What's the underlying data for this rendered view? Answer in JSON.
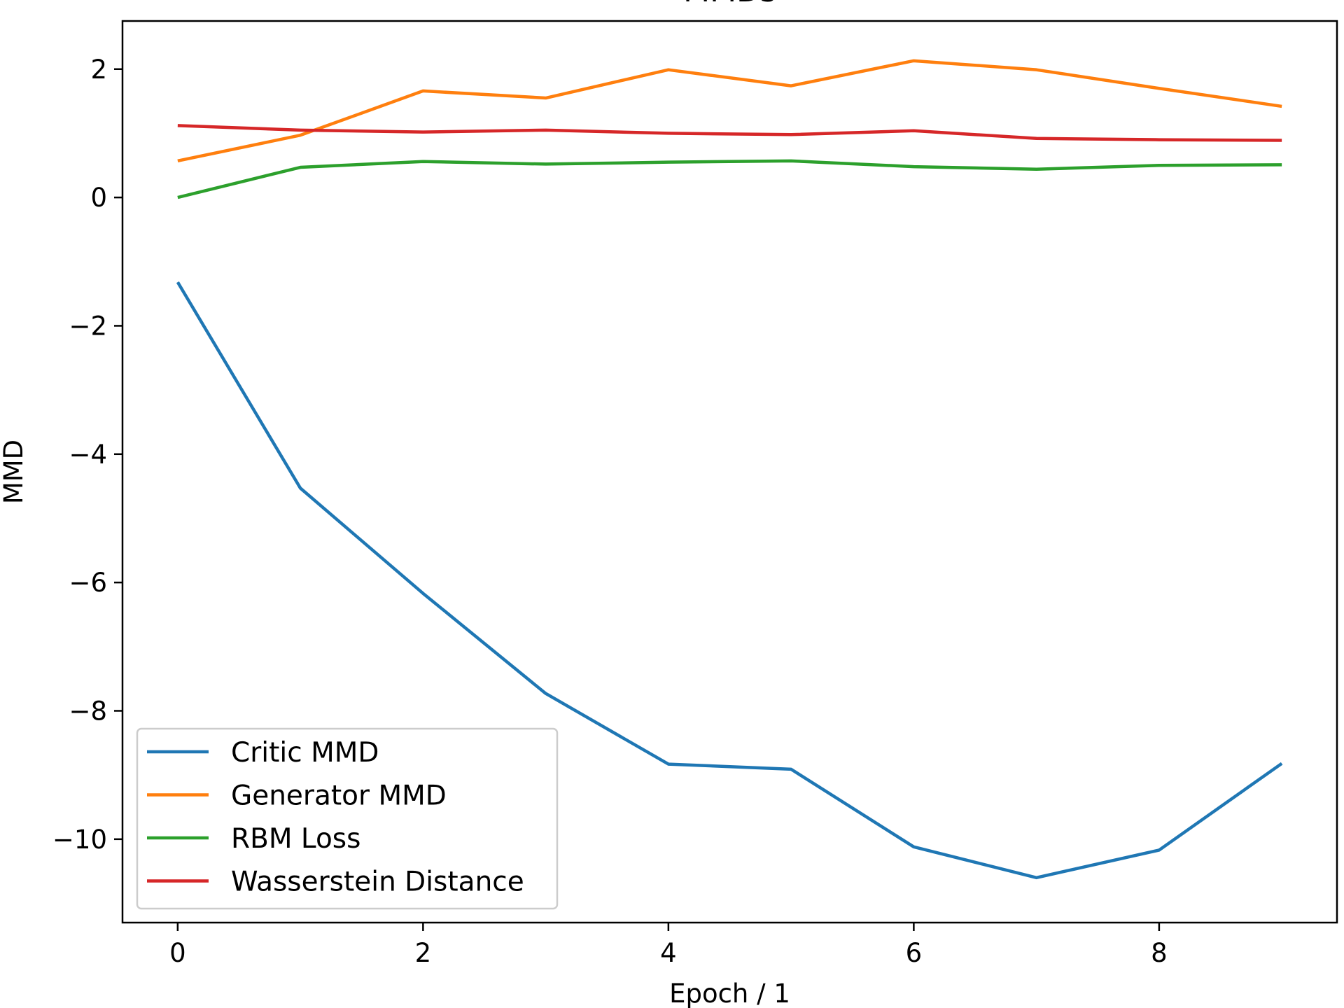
{
  "chart_data": {
    "type": "line",
    "title": "MMDs",
    "xlabel": "Epoch / 1",
    "ylabel": "MMD",
    "xlim": [
      -0.45,
      9.45
    ],
    "ylim": [
      -11.3,
      2.75
    ],
    "x_ticks": [
      0,
      2,
      4,
      6,
      8
    ],
    "y_ticks": [
      2,
      0,
      -2,
      -4,
      -6,
      -8,
      -10
    ],
    "x_tick_labels": [
      "0",
      "2",
      "4",
      "6",
      "8"
    ],
    "y_tick_labels": [
      "2",
      "0",
      "−2",
      "−4",
      "−6",
      "−8",
      "−10"
    ],
    "grid": false,
    "legend_position": "lower-left",
    "x": [
      0,
      1,
      2,
      3,
      4,
      5,
      6,
      7,
      8,
      9
    ],
    "series": [
      {
        "name": "Critic MMD",
        "color": "#1f77b4",
        "values": [
          -1.32,
          -4.53,
          -6.17,
          -7.73,
          -8.83,
          -8.91,
          -10.12,
          -10.6,
          -10.17,
          -8.82
        ]
      },
      {
        "name": "Generator MMD",
        "color": "#ff7f0e",
        "values": [
          0.57,
          0.97,
          1.66,
          1.55,
          1.99,
          1.74,
          2.13,
          1.99,
          1.7,
          1.42
        ]
      },
      {
        "name": "RBM Loss",
        "color": "#2ca02c",
        "values": [
          0.0,
          0.47,
          0.56,
          0.52,
          0.55,
          0.57,
          0.48,
          0.44,
          0.5,
          0.51
        ]
      },
      {
        "name": "Wasserstein Distance",
        "color": "#d62728",
        "values": [
          1.12,
          1.05,
          1.02,
          1.05,
          1.0,
          0.98,
          1.04,
          0.92,
          0.9,
          0.89
        ]
      }
    ]
  }
}
